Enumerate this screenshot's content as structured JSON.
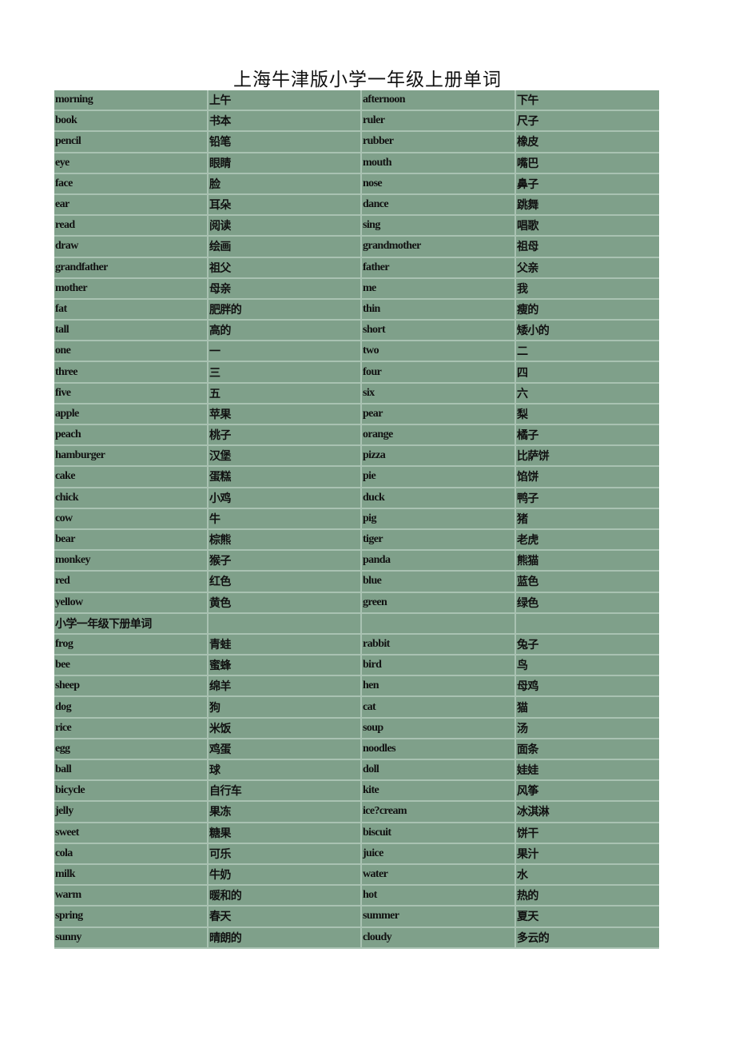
{
  "title": "上海牛津版小学一年级上册单词",
  "rows": [
    [
      "morning",
      "上午",
      "afternoon",
      "下午"
    ],
    [
      "book",
      "书本",
      "ruler",
      "尺子"
    ],
    [
      "pencil",
      "铅笔",
      "rubber",
      "橡皮"
    ],
    [
      "eye",
      "眼睛",
      "mouth",
      "嘴巴"
    ],
    [
      "face",
      "脸",
      "nose",
      "鼻子"
    ],
    [
      "ear",
      "耳朵",
      "dance",
      "跳舞"
    ],
    [
      "read",
      "阅读",
      "sing",
      "唱歌"
    ],
    [
      "draw",
      "绘画",
      "grandmother",
      "祖母"
    ],
    [
      "grandfather",
      "祖父",
      "father",
      "父亲"
    ],
    [
      "mother",
      "母亲",
      "me",
      "我"
    ],
    [
      "fat",
      "肥胖的",
      "thin",
      "瘦的"
    ],
    [
      "tall",
      "高的",
      "short",
      "矮小的"
    ],
    [
      "one",
      "一",
      "two",
      "二"
    ],
    [
      "three",
      "三",
      "four",
      "四"
    ],
    [
      "five",
      "五",
      "six",
      "六"
    ],
    [
      "apple",
      "苹果",
      "pear",
      "梨"
    ],
    [
      "peach",
      "桃子",
      "orange",
      "橘子"
    ],
    [
      "hamburger",
      "汉堡",
      "pizza",
      "比萨饼"
    ],
    [
      "cake",
      "蛋糕",
      "pie",
      "馅饼"
    ],
    [
      "chick",
      "小鸡",
      "duck",
      "鸭子"
    ],
    [
      "cow",
      "牛",
      "pig",
      "猪"
    ],
    [
      "bear",
      "棕熊",
      "tiger",
      "老虎"
    ],
    [
      "monkey",
      "猴子",
      "panda",
      "熊猫"
    ],
    [
      "red",
      "红色",
      "blue",
      "蓝色"
    ],
    [
      "yellow",
      "黄色",
      "green",
      "绿色"
    ],
    [
      "小学一年级下册单词",
      "",
      "",
      ""
    ],
    [
      "frog",
      "青蛙",
      "rabbit",
      "兔子"
    ],
    [
      "bee",
      "蜜蜂",
      "bird",
      "鸟"
    ],
    [
      "sheep",
      "绵羊",
      "hen",
      "母鸡"
    ],
    [
      "dog",
      "狗",
      "cat",
      "猫"
    ],
    [
      "rice",
      "米饭",
      "soup",
      "汤"
    ],
    [
      "egg",
      "鸡蛋",
      "noodles",
      "面条"
    ],
    [
      "ball",
      "球",
      "doll",
      "娃娃"
    ],
    [
      "bicycle",
      "自行车",
      "kite",
      "风筝"
    ],
    [
      "jelly",
      "果冻",
      "ice?cream",
      "冰淇淋"
    ],
    [
      "sweet",
      "糖果",
      "biscuit",
      "饼干"
    ],
    [
      "cola",
      "可乐",
      "juice",
      "果汁"
    ],
    [
      "milk",
      "牛奶",
      "water",
      "水"
    ],
    [
      "warm",
      "暖和的",
      "hot",
      "热的"
    ],
    [
      "spring",
      "春天",
      "summer",
      "夏天"
    ],
    [
      "sunny",
      "晴朗的",
      "cloudy",
      "多云的"
    ]
  ]
}
